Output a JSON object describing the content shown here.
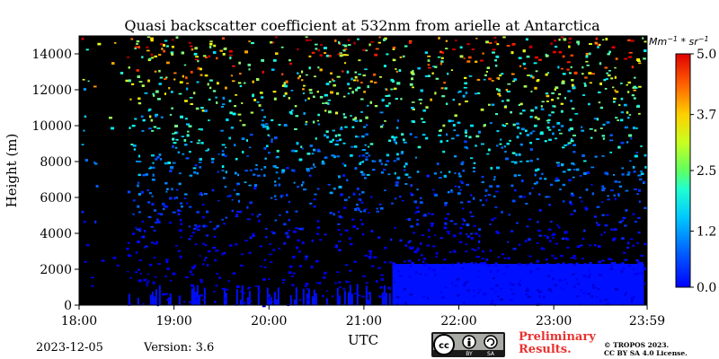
{
  "chart_data": {
    "type": "heatmap",
    "title": "Quasi backscatter coefficient at 532nm from arielle at Antarctica",
    "xlabel": "UTC",
    "ylabel": "Height (m)",
    "x_ticks": [
      "18:00",
      "19:00",
      "20:00",
      "21:00",
      "22:00",
      "23:00",
      "23:59"
    ],
    "x_range_hours": [
      18.0,
      23.983
    ],
    "y_ticks": [
      0,
      2000,
      4000,
      6000,
      8000,
      10000,
      12000,
      14000
    ],
    "ylim": [
      0,
      15000
    ],
    "colorbar": {
      "label": "Mm^{-1} * sr^{-1}",
      "range": [
        0.0,
        5.0
      ],
      "ticks": [
        "0.0",
        "1.2",
        "2.5",
        "3.7",
        "5.0"
      ],
      "colormap": "jet"
    },
    "background_color": "#000000",
    "features": [
      {
        "description_free": true,
        "t_start": 21.3,
        "t_end": 23.95,
        "height_top": 2300,
        "value": 0.3
      },
      {
        "description_free": true,
        "t_start": 18.5,
        "t_end": 21.3,
        "height_top": 1000,
        "value": 0.3,
        "sparse": true
      }
    ]
  },
  "footer": {
    "date": "2023-12-05",
    "version": "Version: 3.6",
    "preliminary": [
      "Preliminary",
      "Results."
    ],
    "copyright": [
      "© TROPOS 2023.",
      "CC BY SA 4.0 License."
    ],
    "license_badge": [
      "cc",
      "BY",
      "SA"
    ]
  }
}
